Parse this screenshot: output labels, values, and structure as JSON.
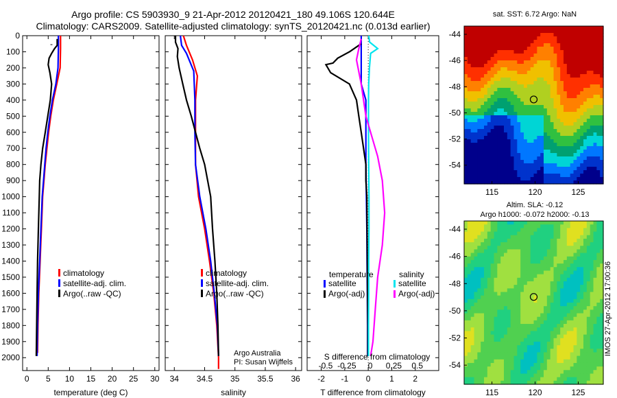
{
  "header": {
    "line1": "Argo profile: CS 5903930_9 21-Apr-2012 20120421_180 49.106S 120.644E",
    "line2": "Climatology: CARS2009. Satellite-adjusted climatology: synTS_20120421.nc (0.013d earlier)"
  },
  "colors": {
    "climatology": "#ff0000",
    "satellite": "#0000ff",
    "argo": "#000000",
    "satellite_s": "#00e5ee",
    "argo_s": "#ff00ff"
  },
  "chart_data": [
    {
      "id": "temperature",
      "type": "line",
      "xlabel": "temperature (deg C)",
      "xlim": [
        -1,
        31
      ],
      "ylim": [
        2080,
        0
      ],
      "xticks": [
        0,
        5,
        10,
        15,
        20,
        25,
        30
      ],
      "yticks": [
        0,
        100,
        200,
        300,
        400,
        500,
        600,
        700,
        800,
        900,
        1000,
        1100,
        1200,
        1300,
        1400,
        1500,
        1600,
        1700,
        1800,
        1900,
        2000
      ],
      "legend": [
        "climatology",
        "satellite-adj. clim.",
        "Argo(..raw -QC)"
      ],
      "series": [
        {
          "name": "climatology",
          "color": "#ff0000",
          "points": [
            [
              7.9,
              0
            ],
            [
              7.9,
              80
            ],
            [
              7.8,
              200
            ],
            [
              7.0,
              300
            ],
            [
              6.2,
              400
            ],
            [
              5.6,
              500
            ],
            [
              5.1,
              600
            ],
            [
              4.7,
              700
            ],
            [
              4.3,
              800
            ],
            [
              4.0,
              900
            ],
            [
              3.7,
              1000
            ],
            [
              3.4,
              1200
            ],
            [
              3.1,
              1400
            ],
            [
              2.8,
              1600
            ],
            [
              2.6,
              1800
            ],
            [
              2.5,
              1970
            ]
          ]
        },
        {
          "name": "satellite-adj. clim.",
          "color": "#0000ff",
          "points": [
            [
              7.4,
              0
            ],
            [
              7.4,
              80
            ],
            [
              7.3,
              200
            ],
            [
              6.8,
              300
            ],
            [
              6.0,
              400
            ],
            [
              5.4,
              500
            ],
            [
              4.9,
              600
            ],
            [
              4.5,
              700
            ],
            [
              4.2,
              800
            ],
            [
              3.9,
              900
            ],
            [
              3.6,
              1000
            ],
            [
              3.3,
              1200
            ],
            [
              3.0,
              1400
            ],
            [
              2.7,
              1600
            ],
            [
              2.5,
              1800
            ],
            [
              2.4,
              1990
            ]
          ]
        },
        {
          "name": "Argo(..raw -QC)",
          "color": "#000000",
          "points": [
            [
              7.1,
              20
            ],
            [
              7.1,
              60
            ],
            [
              6.5,
              80
            ],
            [
              5.8,
              110
            ],
            [
              5.2,
              140
            ],
            [
              5.0,
              180
            ],
            [
              5.4,
              230
            ],
            [
              5.8,
              300
            ],
            [
              5.5,
              400
            ],
            [
              4.9,
              500
            ],
            [
              4.3,
              600
            ],
            [
              3.7,
              700
            ],
            [
              3.3,
              800
            ],
            [
              3.0,
              900
            ],
            [
              2.9,
              1000
            ],
            [
              2.7,
              1200
            ],
            [
              2.5,
              1400
            ],
            [
              2.4,
              1600
            ],
            [
              2.3,
              1800
            ],
            [
              2.2,
              1990
            ]
          ]
        }
      ],
      "annotation": "-"
    },
    {
      "id": "salinity",
      "type": "line",
      "xlabel": "salinity",
      "xlim": [
        33.85,
        36.1
      ],
      "ylim": [
        2080,
        0
      ],
      "xticks": [
        34,
        34.5,
        35,
        35.5,
        36
      ],
      "legend": [
        "climatology",
        "satellite-adj. clim.",
        "Argo(..raw -QC)"
      ],
      "series": [
        {
          "name": "climatology",
          "color": "#ff0000",
          "points": [
            [
              34.15,
              0
            ],
            [
              34.2,
              60
            ],
            [
              34.3,
              150
            ],
            [
              34.38,
              250
            ],
            [
              34.35,
              400
            ],
            [
              34.35,
              600
            ],
            [
              34.35,
              800
            ],
            [
              34.4,
              1000
            ],
            [
              34.5,
              1200
            ],
            [
              34.58,
              1400
            ],
            [
              34.65,
              1600
            ],
            [
              34.7,
              1800
            ],
            [
              34.73,
              2000
            ],
            [
              34.73,
              2070
            ]
          ]
        },
        {
          "name": "satellite-adj. clim.",
          "color": "#0000ff",
          "points": [
            [
              34.1,
              0
            ],
            [
              34.12,
              60
            ],
            [
              34.2,
              110
            ],
            [
              34.32,
              220
            ],
            [
              34.34,
              400
            ],
            [
              34.34,
              600
            ],
            [
              34.35,
              800
            ],
            [
              34.42,
              1000
            ],
            [
              34.52,
              1200
            ],
            [
              34.6,
              1400
            ],
            [
              34.66,
              1600
            ],
            [
              34.71,
              1800
            ],
            [
              34.73,
              1990
            ]
          ]
        },
        {
          "name": "Argo(..raw -QC)",
          "color": "#000000",
          "points": [
            [
              34.02,
              0
            ],
            [
              34.02,
              40
            ],
            [
              34.06,
              80
            ],
            [
              34.05,
              130
            ],
            [
              34.08,
              200
            ],
            [
              34.14,
              300
            ],
            [
              34.2,
              400
            ],
            [
              34.28,
              500
            ],
            [
              34.35,
              600
            ],
            [
              34.42,
              700
            ],
            [
              34.5,
              800
            ],
            [
              34.55,
              900
            ],
            [
              34.6,
              1000
            ],
            [
              34.63,
              1200
            ],
            [
              34.67,
              1400
            ],
            [
              34.7,
              1600
            ],
            [
              34.72,
              1800
            ],
            [
              34.73,
              1990
            ]
          ]
        }
      ],
      "credit": [
        "Argo Australia",
        "PI: Susan Wijffels"
      ]
    },
    {
      "id": "difference",
      "type": "line",
      "xlabel": "T difference from climatology",
      "toplabel": "S difference from climatology",
      "xlim": [
        -2.6,
        3.0
      ],
      "ylim": [
        2080,
        0
      ],
      "xticks": [
        -2,
        -1,
        0,
        1,
        2
      ],
      "top_ticks": [
        "-0.5",
        "-0.25",
        "0",
        "0.25",
        "0.5"
      ],
      "legend_t_title": "temperature",
      "legend_s_title": "salinity",
      "legend": [
        "satellite",
        "Argo(-adj)",
        "satellite",
        "Argo(-adj)"
      ],
      "series": [
        {
          "name": "satellite",
          "group": "temperature",
          "color": "#0000ff",
          "points": [
            [
              -0.3,
              0
            ],
            [
              -0.3,
              100
            ],
            [
              -0.3,
              200
            ],
            [
              -0.3,
              300
            ],
            [
              -0.1,
              400
            ],
            [
              -0.1,
              600
            ],
            [
              -0.1,
              800
            ],
            [
              -0.08,
              1000
            ],
            [
              -0.06,
              1200
            ],
            [
              -0.05,
              1400
            ],
            [
              -0.04,
              1600
            ],
            [
              -0.03,
              1800
            ],
            [
              -0.03,
              1990
            ]
          ]
        },
        {
          "name": "Argo(-adj)",
          "group": "temperature",
          "color": "#000000",
          "points": [
            [
              -0.3,
              50
            ],
            [
              -0.8,
              100
            ],
            [
              -1.3,
              140
            ],
            [
              -1.5,
              170
            ],
            [
              -1.8,
              180
            ],
            [
              -1.6,
              230
            ],
            [
              -0.8,
              300
            ],
            [
              -0.5,
              400
            ],
            [
              -0.4,
              500
            ],
            [
              -0.3,
              600
            ],
            [
              -0.2,
              700
            ],
            [
              -0.1,
              800
            ],
            [
              -0.1,
              900
            ],
            [
              -0.06,
              1000
            ],
            [
              -0.05,
              1200
            ],
            [
              -0.04,
              1400
            ],
            [
              -0.03,
              1600
            ],
            [
              -0.02,
              1800
            ],
            [
              -0.02,
              1990
            ]
          ]
        },
        {
          "name": "satellite",
          "group": "salinity",
          "color": "#00e5ee",
          "points": [
            [
              0.02,
              0
            ],
            [
              0.06,
              40
            ],
            [
              0.4,
              80
            ],
            [
              0.1,
              110
            ],
            [
              0.05,
              200
            ],
            [
              0.02,
              300
            ],
            [
              0.01,
              400
            ],
            [
              0.01,
              600
            ],
            [
              0.02,
              800
            ],
            [
              0.03,
              1000
            ],
            [
              0.03,
              1200
            ],
            [
              0.02,
              1400
            ],
            [
              0.02,
              1600
            ],
            [
              0.01,
              1800
            ],
            [
              0.01,
              1990
            ]
          ]
        },
        {
          "name": "Argo(-adj)",
          "group": "salinity",
          "color": "#ff00ff",
          "points": [
            [
              -0.3,
              20
            ],
            [
              -0.4,
              80
            ],
            [
              -0.5,
              150
            ],
            [
              -0.3,
              300
            ],
            [
              -0.1,
              500
            ],
            [
              0.2,
              650
            ],
            [
              0.4,
              750
            ],
            [
              0.6,
              900
            ],
            [
              0.7,
              1100
            ],
            [
              0.6,
              1300
            ],
            [
              0.4,
              1500
            ],
            [
              0.3,
              1700
            ],
            [
              0.2,
              1900
            ],
            [
              0.1,
              1990
            ]
          ]
        }
      ]
    }
  ],
  "maps": [
    {
      "id": "sst-map",
      "title": "sat. SST: 6.72  Argo: NaN",
      "xticks": [
        "115",
        "120",
        "125"
      ],
      "yticks": [
        "-44",
        "-46",
        "-48",
        "-50",
        "-52",
        "-54"
      ],
      "palette": [
        "#00008b",
        "#0033cc",
        "#0077ff",
        "#00d5d5",
        "#00a070",
        "#30c040",
        "#b0d020",
        "#f0c000",
        "#ff8000",
        "#ff3000",
        "#c00000"
      ],
      "marker": "argo-float"
    },
    {
      "id": "sla-map",
      "title_line1": "Altim. SLA: -0.12",
      "title_line2": "Argo h1000: -0.072 h2000: -0.13",
      "xticks": [
        "115",
        "120",
        "125"
      ],
      "yticks": [
        "-44",
        "-46",
        "-48",
        "-50",
        "-52",
        "-54"
      ],
      "palette": [
        "#00c0c0",
        "#20d080",
        "#50d050",
        "#a0e040",
        "#e0e020"
      ],
      "side_label": "IMOS 27-Apr-2012 17:00:36",
      "marker": "argo-float"
    }
  ]
}
